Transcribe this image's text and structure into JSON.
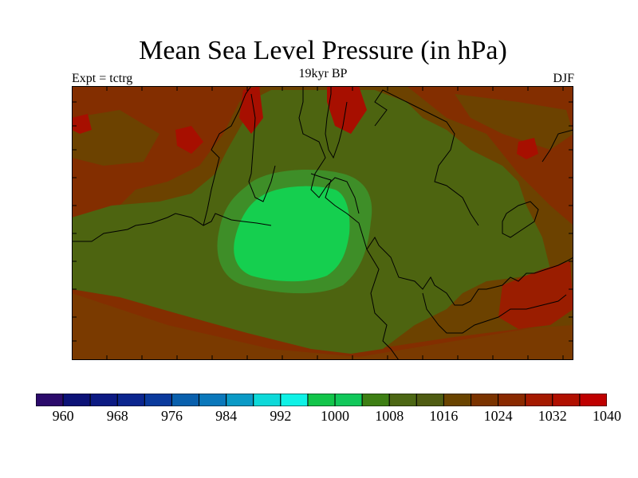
{
  "header": {
    "title": "Mean Sea Level Pressure (in hPa)",
    "subtitle": "19kyr BP",
    "left_label": "Expt = tctrg",
    "right_label": "DJF"
  },
  "map": {
    "region": "Australia and Indonesian maritime continent",
    "variable": "Mean Sea Level Pressure",
    "units": "hPa",
    "colors": {
      "background": "#832e00",
      "high_red": "#a70f00",
      "mid_brown": "#6c4200",
      "olive": "#4d6410",
      "green_mid": "#3e8e28",
      "green_low": "#15cf4f",
      "coast": "#000000"
    }
  },
  "colorbar": {
    "colors": [
      "#2b0a6b",
      "#0c1277",
      "#0c1a83",
      "#0b268f",
      "#0a3a9d",
      "#0960ad",
      "#0a78bb",
      "#0a9ac6",
      "#0dd9d9",
      "#0ff2e6",
      "#12c54a",
      "#11c85a",
      "#3e7f14",
      "#4c6714",
      "#4f5c12",
      "#6a4400",
      "#7b3400",
      "#8a2a00",
      "#a51a00",
      "#b11000",
      "#bf0000"
    ],
    "labels": [
      "960",
      "968",
      "976",
      "984",
      "992",
      "1000",
      "1008",
      "1016",
      "1024",
      "1032",
      "1040"
    ]
  }
}
